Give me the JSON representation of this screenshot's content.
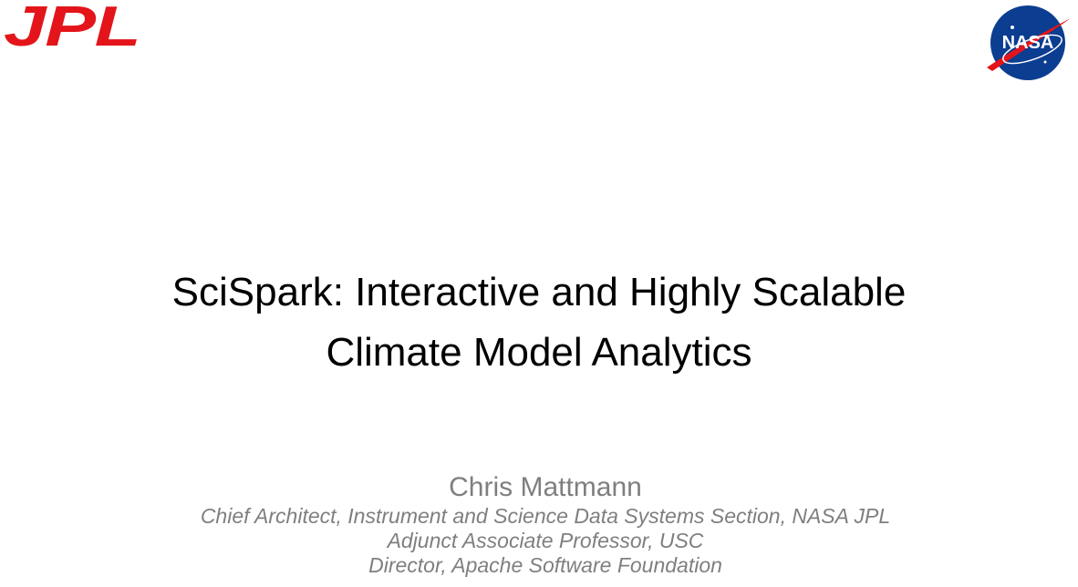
{
  "logos": {
    "left": "JPL",
    "right": "NASA"
  },
  "title": {
    "lines": [
      "SciSpark: Interactive and Highly Scalable",
      "Climate Model Analytics"
    ]
  },
  "author": {
    "name": "Chris Mattmann",
    "roles": [
      "Chief Architect, Instrument and Science Data Systems Section, NASA JPL",
      "Adjunct Associate Professor, USC",
      "Director, Apache Software Foundation"
    ]
  }
}
